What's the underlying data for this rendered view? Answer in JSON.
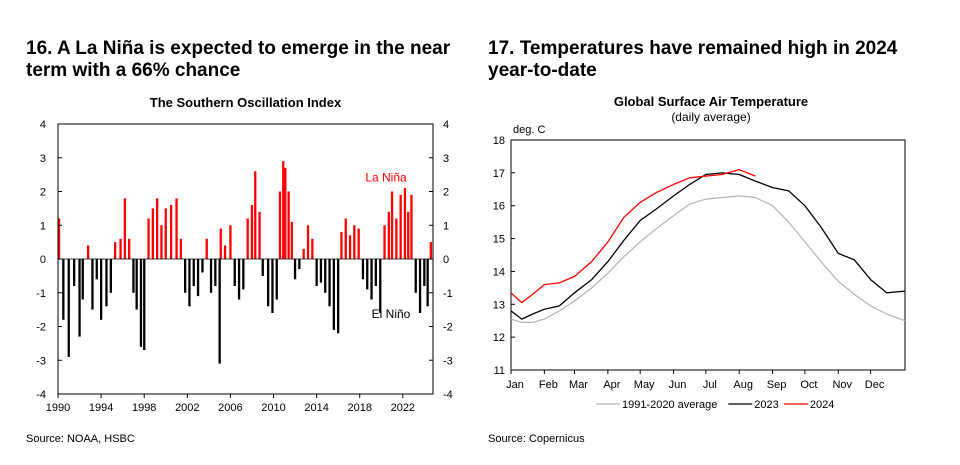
{
  "left": {
    "heading": "16. A La Niña is expected to emerge in the near term with a 66% chance",
    "source": "Source: NOAA, HSBC"
  },
  "right": {
    "heading": "17. Temperatures have remained high in 2024 year-to-date",
    "source": "Source: Copernicus"
  },
  "chart_data": [
    {
      "type": "bar",
      "title": "The Southern Oscillation Index",
      "x_range": [
        1990,
        2024.8
      ],
      "ylim": [
        -4,
        4
      ],
      "y_ticks": [
        4,
        3,
        2,
        1,
        0,
        -1,
        -2,
        -3,
        -4
      ],
      "x_ticks": [
        "1990",
        "1994",
        "1998",
        "2002",
        "2006",
        "2010",
        "2014",
        "2018",
        "2022"
      ],
      "annotations": [
        "La Niña",
        "El Niño"
      ],
      "colors": {
        "positive": "#ff0000",
        "negative": "#000000"
      },
      "x": [
        1990.1,
        1990.5,
        1991.0,
        1991.5,
        1992.0,
        1992.3,
        1992.8,
        1993.2,
        1993.6,
        1994.0,
        1994.5,
        1994.9,
        1995.3,
        1995.8,
        1996.2,
        1996.6,
        1997.0,
        1997.3,
        1997.7,
        1998.0,
        1998.4,
        1998.8,
        1999.2,
        1999.6,
        2000.0,
        2000.5,
        2001.0,
        2001.4,
        2001.8,
        2002.2,
        2002.6,
        2003.0,
        2003.4,
        2003.8,
        2004.2,
        2004.6,
        2005.0,
        2005.1,
        2005.5,
        2006.0,
        2006.4,
        2006.8,
        2007.2,
        2007.6,
        2008.0,
        2008.3,
        2008.7,
        2009.0,
        2009.5,
        2009.9,
        2010.3,
        2010.6,
        2010.9,
        2011.1,
        2011.4,
        2011.7,
        2012.0,
        2012.4,
        2012.8,
        2013.2,
        2013.6,
        2014.0,
        2014.4,
        2014.8,
        2015.2,
        2015.6,
        2016.0,
        2016.3,
        2016.7,
        2017.1,
        2017.5,
        2017.9,
        2018.3,
        2018.7,
        2019.1,
        2019.5,
        2019.9,
        2020.3,
        2020.7,
        2021.0,
        2021.4,
        2021.8,
        2022.2,
        2022.5,
        2022.8,
        2023.2,
        2023.6,
        2024.0,
        2024.3,
        2024.6
      ],
      "values": [
        1.2,
        -1.8,
        -2.9,
        -0.8,
        -2.3,
        -1.2,
        0.4,
        -1.5,
        -0.6,
        -1.8,
        -1.4,
        -1.0,
        0.5,
        0.6,
        1.8,
        0.6,
        -1.0,
        -1.5,
        -2.6,
        -2.7,
        1.2,
        1.5,
        1.8,
        1.0,
        1.5,
        1.6,
        1.8,
        0.6,
        -1.0,
        -1.4,
        -0.8,
        -1.1,
        -0.4,
        0.6,
        -1.0,
        -0.8,
        -3.1,
        0.9,
        0.4,
        1.0,
        -0.8,
        -1.2,
        -0.9,
        1.2,
        1.6,
        2.6,
        1.4,
        -0.5,
        -1.4,
        -1.6,
        -1.2,
        2.0,
        2.9,
        2.7,
        2.0,
        1.1,
        -0.6,
        -0.3,
        0.3,
        1.0,
        0.6,
        -0.8,
        -0.7,
        -1.0,
        -1.4,
        -2.1,
        -2.2,
        0.8,
        1.2,
        0.7,
        1.0,
        0.9,
        -0.6,
        -0.9,
        -1.2,
        -0.8,
        -1.6,
        1.0,
        1.4,
        2.0,
        1.2,
        1.9,
        2.1,
        1.4,
        1.9,
        -1.0,
        -1.6,
        -0.8,
        -1.4,
        0.5
      ]
    },
    {
      "type": "line",
      "title": "Global Surface Air Temperature",
      "subtitle": "(daily average)",
      "ylabel": "deg. C",
      "ylim": [
        11,
        18
      ],
      "y_ticks": [
        18,
        17,
        16,
        15,
        14,
        13,
        12,
        11
      ],
      "xlim": [
        0,
        366
      ],
      "x_ticks": [
        0,
        31,
        59,
        90,
        120,
        151,
        181,
        212,
        243,
        273,
        304,
        334
      ],
      "categories": [
        "Jan",
        "Feb",
        "Mar",
        "Apr",
        "May",
        "Jun",
        "Jul",
        "Aug",
        "Sep",
        "Oct",
        "Nov",
        "Dec"
      ],
      "x": [
        0,
        10,
        20,
        31,
        45,
        59,
        75,
        90,
        105,
        120,
        135,
        151,
        166,
        181,
        196,
        212,
        227,
        243,
        258,
        273,
        288,
        304,
        319,
        334,
        349,
        366
      ],
      "series": [
        {
          "name": "1991-2020 average",
          "color": "#b3b3b3",
          "values": [
            12.55,
            12.45,
            12.45,
            12.55,
            12.8,
            13.1,
            13.5,
            13.95,
            14.45,
            14.9,
            15.3,
            15.7,
            16.05,
            16.2,
            16.25,
            16.3,
            16.25,
            16.0,
            15.5,
            14.9,
            14.3,
            13.7,
            13.3,
            12.95,
            12.7,
            12.5
          ]
        },
        {
          "name": "2023",
          "color": "#000000",
          "values": [
            12.8,
            12.55,
            12.7,
            12.85,
            12.95,
            13.35,
            13.75,
            14.3,
            14.95,
            15.55,
            15.9,
            16.3,
            16.65,
            16.95,
            17.0,
            16.95,
            16.75,
            16.55,
            16.45,
            16.0,
            15.35,
            14.55,
            14.35,
            13.75,
            13.35,
            13.4
          ]
        },
        {
          "name": "2024",
          "color": "#ff0000",
          "values": [
            13.35,
            13.05,
            13.3,
            13.6,
            13.65,
            13.85,
            14.3,
            14.9,
            15.65,
            16.1,
            16.4,
            16.65,
            16.85,
            16.9,
            16.95,
            17.1,
            16.9,
            null,
            null,
            null,
            null,
            null,
            null,
            null,
            null,
            null
          ]
        }
      ],
      "legend_position": "bottom"
    }
  ]
}
